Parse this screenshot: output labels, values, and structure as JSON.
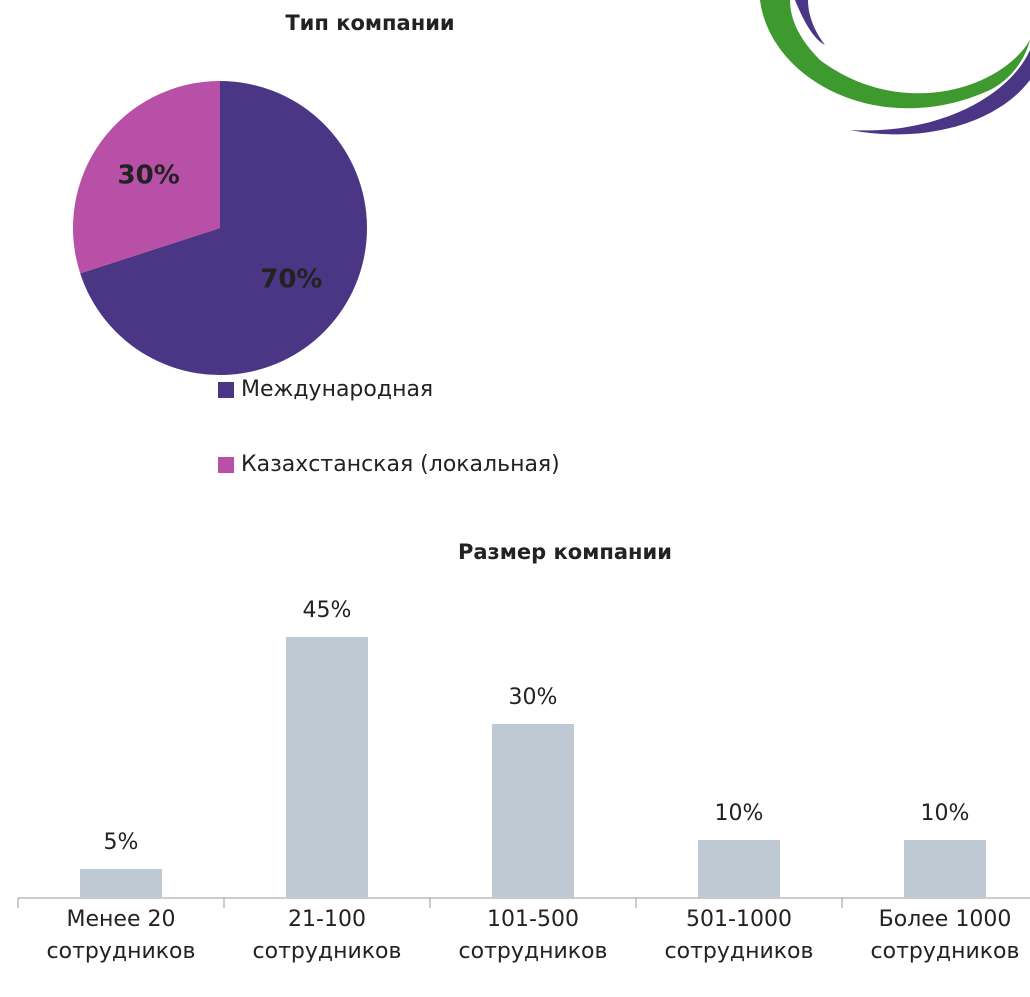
{
  "chart_data": [
    {
      "type": "pie",
      "title": "Тип компании",
      "categories": [
        "Международная",
        "Казахстанская (локальная)"
      ],
      "values": [
        70,
        30
      ],
      "value_labels": [
        "70%",
        "30%"
      ],
      "colors": [
        "#4b3585",
        "#b950a8"
      ],
      "legend": "bottom"
    },
    {
      "type": "bar",
      "title": "Размер компании",
      "categories": [
        "Менее 20 сотрудников",
        "21-100 сотрудников",
        "101-500 сотрудников",
        "501-1000 сотрудников",
        "Более 1000 сотрудников"
      ],
      "values": [
        5,
        45,
        30,
        10,
        10
      ],
      "value_labels": [
        "5%",
        "45%",
        "30%",
        "10%",
        "10%"
      ],
      "color": "#bfc9d3"
    }
  ]
}
